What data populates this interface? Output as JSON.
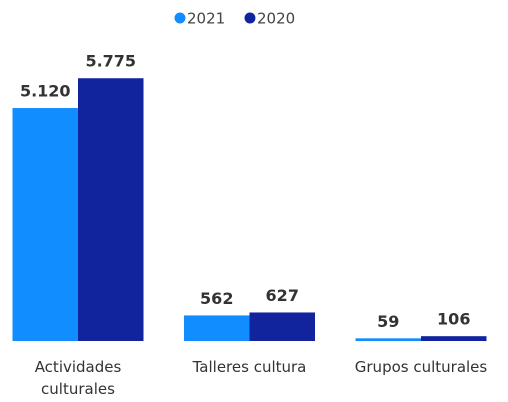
{
  "chart_data": {
    "type": "bar",
    "categories": [
      "Actividades culturales",
      "Talleres cultura",
      "Grupos culturales"
    ],
    "series": [
      {
        "name": "2021",
        "color": "#118dff",
        "values": [
          5120,
          562,
          59
        ],
        "value_labels": [
          "5.120",
          "562",
          "59"
        ]
      },
      {
        "name": "2020",
        "color": "#12239e",
        "values": [
          5775,
          627,
          106
        ],
        "value_labels": [
          "5.775",
          "627",
          "106"
        ]
      }
    ],
    "ylim": [
      0,
      6000
    ]
  }
}
